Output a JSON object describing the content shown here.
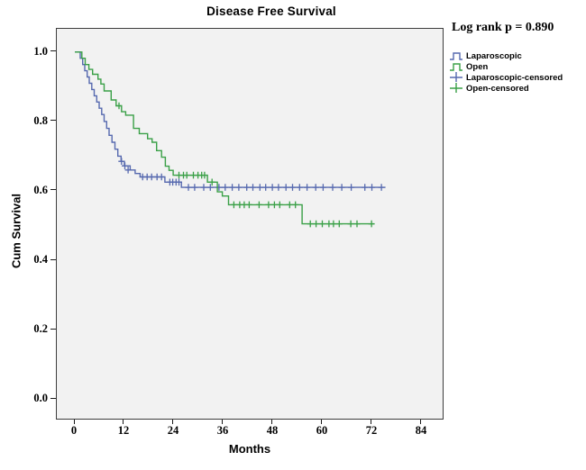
{
  "chart": {
    "title": "Disease Free Survival",
    "annotation": "Log rank p = 0.890"
  },
  "chart_data": {
    "type": "line",
    "subtype": "kaplan-meier-step-survival",
    "title": "Disease Free Survival",
    "xlabel": "Months",
    "ylabel": "Cum Survival",
    "annotation": "Log rank p = 0.890",
    "log_rank_p": "0.890",
    "x_ticks": [
      0,
      12,
      24,
      36,
      48,
      60,
      72,
      84
    ],
    "y_ticks": [
      {
        "label": "1.0",
        "value": 1.0
      },
      {
        "label": "0.8",
        "value": 0.8
      },
      {
        "label": "0.6",
        "value": 0.6
      },
      {
        "label": "0.4",
        "value": 0.4
      },
      {
        "label": "0.2",
        "value": 0.2
      },
      {
        "label": "0.0",
        "value": 0.0
      }
    ],
    "xlim": [
      -4.6,
      89.2
    ],
    "ylim": [
      -0.07,
      1.07
    ],
    "grid": false,
    "plot_background": "#f2f2f2",
    "legend_position": "outside-top-right",
    "legend": [
      {
        "label": "Laparoscopic",
        "color": "#5669af",
        "glyph": "step"
      },
      {
        "label": "Open",
        "color": "#3aa047",
        "glyph": "step"
      },
      {
        "label": "Laparoscopic-censored",
        "color": "#5669af",
        "glyph": "plus"
      },
      {
        "label": "Open-censored",
        "color": "#3aa047",
        "glyph": "plus"
      }
    ],
    "series": [
      {
        "name": "Laparoscopic",
        "color": "#5669af",
        "end_month": 75.2,
        "points": [
          [
            0,
            1.0
          ],
          [
            1.3,
            0.982
          ],
          [
            1.9,
            0.964
          ],
          [
            2.4,
            0.946
          ],
          [
            3.0,
            0.928
          ],
          [
            3.5,
            0.91
          ],
          [
            4.1,
            0.892
          ],
          [
            4.7,
            0.874
          ],
          [
            5.3,
            0.856
          ],
          [
            5.9,
            0.838
          ],
          [
            6.5,
            0.82
          ],
          [
            7.1,
            0.8
          ],
          [
            7.7,
            0.78
          ],
          [
            8.3,
            0.76
          ],
          [
            9.0,
            0.74
          ],
          [
            9.7,
            0.72
          ],
          [
            10.4,
            0.7
          ],
          [
            11.2,
            0.685
          ],
          [
            12.0,
            0.672
          ],
          [
            13.4,
            0.66
          ],
          [
            14.6,
            0.65
          ],
          [
            15.8,
            0.64
          ],
          [
            21.8,
            0.625
          ],
          [
            25.8,
            0.61
          ]
        ],
        "censored": [
          [
            11.3,
            0.685
          ],
          [
            12.1,
            0.672
          ],
          [
            12.9,
            0.66
          ],
          [
            16.4,
            0.64
          ],
          [
            17.5,
            0.64
          ],
          [
            18.6,
            0.64
          ],
          [
            19.9,
            0.64
          ],
          [
            21.0,
            0.64
          ],
          [
            23.0,
            0.625
          ],
          [
            23.7,
            0.625
          ],
          [
            24.5,
            0.625
          ],
          [
            25.2,
            0.625
          ],
          [
            27.5,
            0.61
          ],
          [
            29.0,
            0.61
          ],
          [
            31.2,
            0.61
          ],
          [
            32.8,
            0.61
          ],
          [
            34.9,
            0.61
          ],
          [
            36.4,
            0.61
          ],
          [
            38.1,
            0.61
          ],
          [
            39.7,
            0.61
          ],
          [
            41.6,
            0.61
          ],
          [
            43.1,
            0.61
          ],
          [
            44.8,
            0.61
          ],
          [
            46.2,
            0.61
          ],
          [
            47.8,
            0.61
          ],
          [
            49.3,
            0.61
          ],
          [
            51.1,
            0.61
          ],
          [
            52.7,
            0.61
          ],
          [
            54.4,
            0.61
          ],
          [
            56.2,
            0.61
          ],
          [
            58.3,
            0.61
          ],
          [
            60.1,
            0.61
          ],
          [
            62.4,
            0.61
          ],
          [
            64.6,
            0.61
          ],
          [
            66.9,
            0.61
          ],
          [
            70.2,
            0.61
          ],
          [
            71.9,
            0.61
          ],
          [
            74.2,
            0.61
          ]
        ]
      },
      {
        "name": "Open",
        "color": "#3aa047",
        "end_month": 72.5,
        "points": [
          [
            0,
            1.0
          ],
          [
            1.7,
            0.982
          ],
          [
            2.5,
            0.964
          ],
          [
            3.4,
            0.95
          ],
          [
            4.3,
            0.936
          ],
          [
            5.6,
            0.922
          ],
          [
            6.3,
            0.908
          ],
          [
            7.1,
            0.888
          ],
          [
            8.8,
            0.862
          ],
          [
            10.0,
            0.845
          ],
          [
            11.3,
            0.828
          ],
          [
            12.3,
            0.818
          ],
          [
            14.2,
            0.78
          ],
          [
            15.6,
            0.765
          ],
          [
            17.6,
            0.75
          ],
          [
            18.7,
            0.74
          ],
          [
            19.8,
            0.716
          ],
          [
            21.0,
            0.697
          ],
          [
            21.9,
            0.671
          ],
          [
            22.8,
            0.659
          ],
          [
            23.8,
            0.645
          ],
          [
            32.1,
            0.625
          ],
          [
            34.5,
            0.597
          ],
          [
            35.7,
            0.585
          ],
          [
            37.2,
            0.56
          ],
          [
            55.0,
            0.505
          ]
        ],
        "censored": [
          [
            10.7,
            0.845
          ],
          [
            25.2,
            0.645
          ],
          [
            26.3,
            0.645
          ],
          [
            27.1,
            0.645
          ],
          [
            28.7,
            0.645
          ],
          [
            29.8,
            0.645
          ],
          [
            30.7,
            0.645
          ],
          [
            31.4,
            0.645
          ],
          [
            33.2,
            0.625
          ],
          [
            38.5,
            0.56
          ],
          [
            39.9,
            0.56
          ],
          [
            41.0,
            0.56
          ],
          [
            42.2,
            0.56
          ],
          [
            44.6,
            0.56
          ],
          [
            46.9,
            0.56
          ],
          [
            48.3,
            0.56
          ],
          [
            49.6,
            0.56
          ],
          [
            52.0,
            0.56
          ],
          [
            53.4,
            0.56
          ],
          [
            57.0,
            0.505
          ],
          [
            58.4,
            0.505
          ],
          [
            59.9,
            0.505
          ],
          [
            61.5,
            0.505
          ],
          [
            62.6,
            0.505
          ],
          [
            64.0,
            0.505
          ],
          [
            66.8,
            0.505
          ],
          [
            68.3,
            0.505
          ],
          [
            71.8,
            0.505
          ]
        ]
      }
    ]
  }
}
